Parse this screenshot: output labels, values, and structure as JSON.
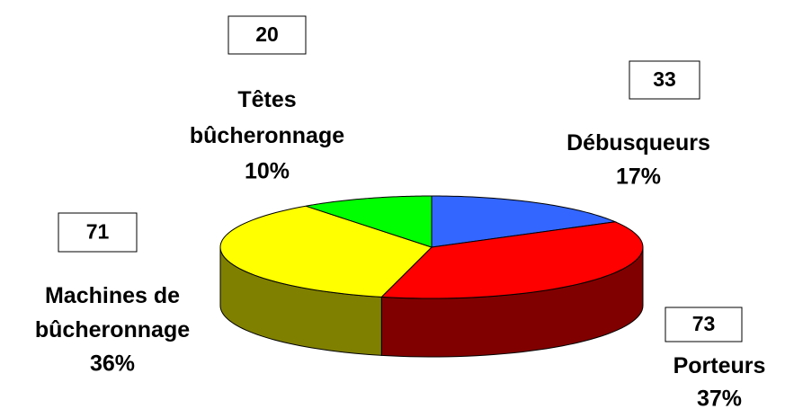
{
  "chart_data": {
    "type": "pie3d",
    "categories": [
      "Débusqueurs",
      "Porteurs",
      "Machines de bûcheronnage",
      "Têtes bûcheronnage"
    ],
    "values": [
      33,
      73,
      71,
      20
    ],
    "percent_labels": [
      "17%",
      "37%",
      "36%",
      "10%"
    ],
    "colors": [
      "#3366ff",
      "#ff0000",
      "#ffff00",
      "#00ff00"
    ],
    "side_colors": [
      "#1a3380",
      "#800000",
      "#808000",
      "#008000"
    ]
  }
}
